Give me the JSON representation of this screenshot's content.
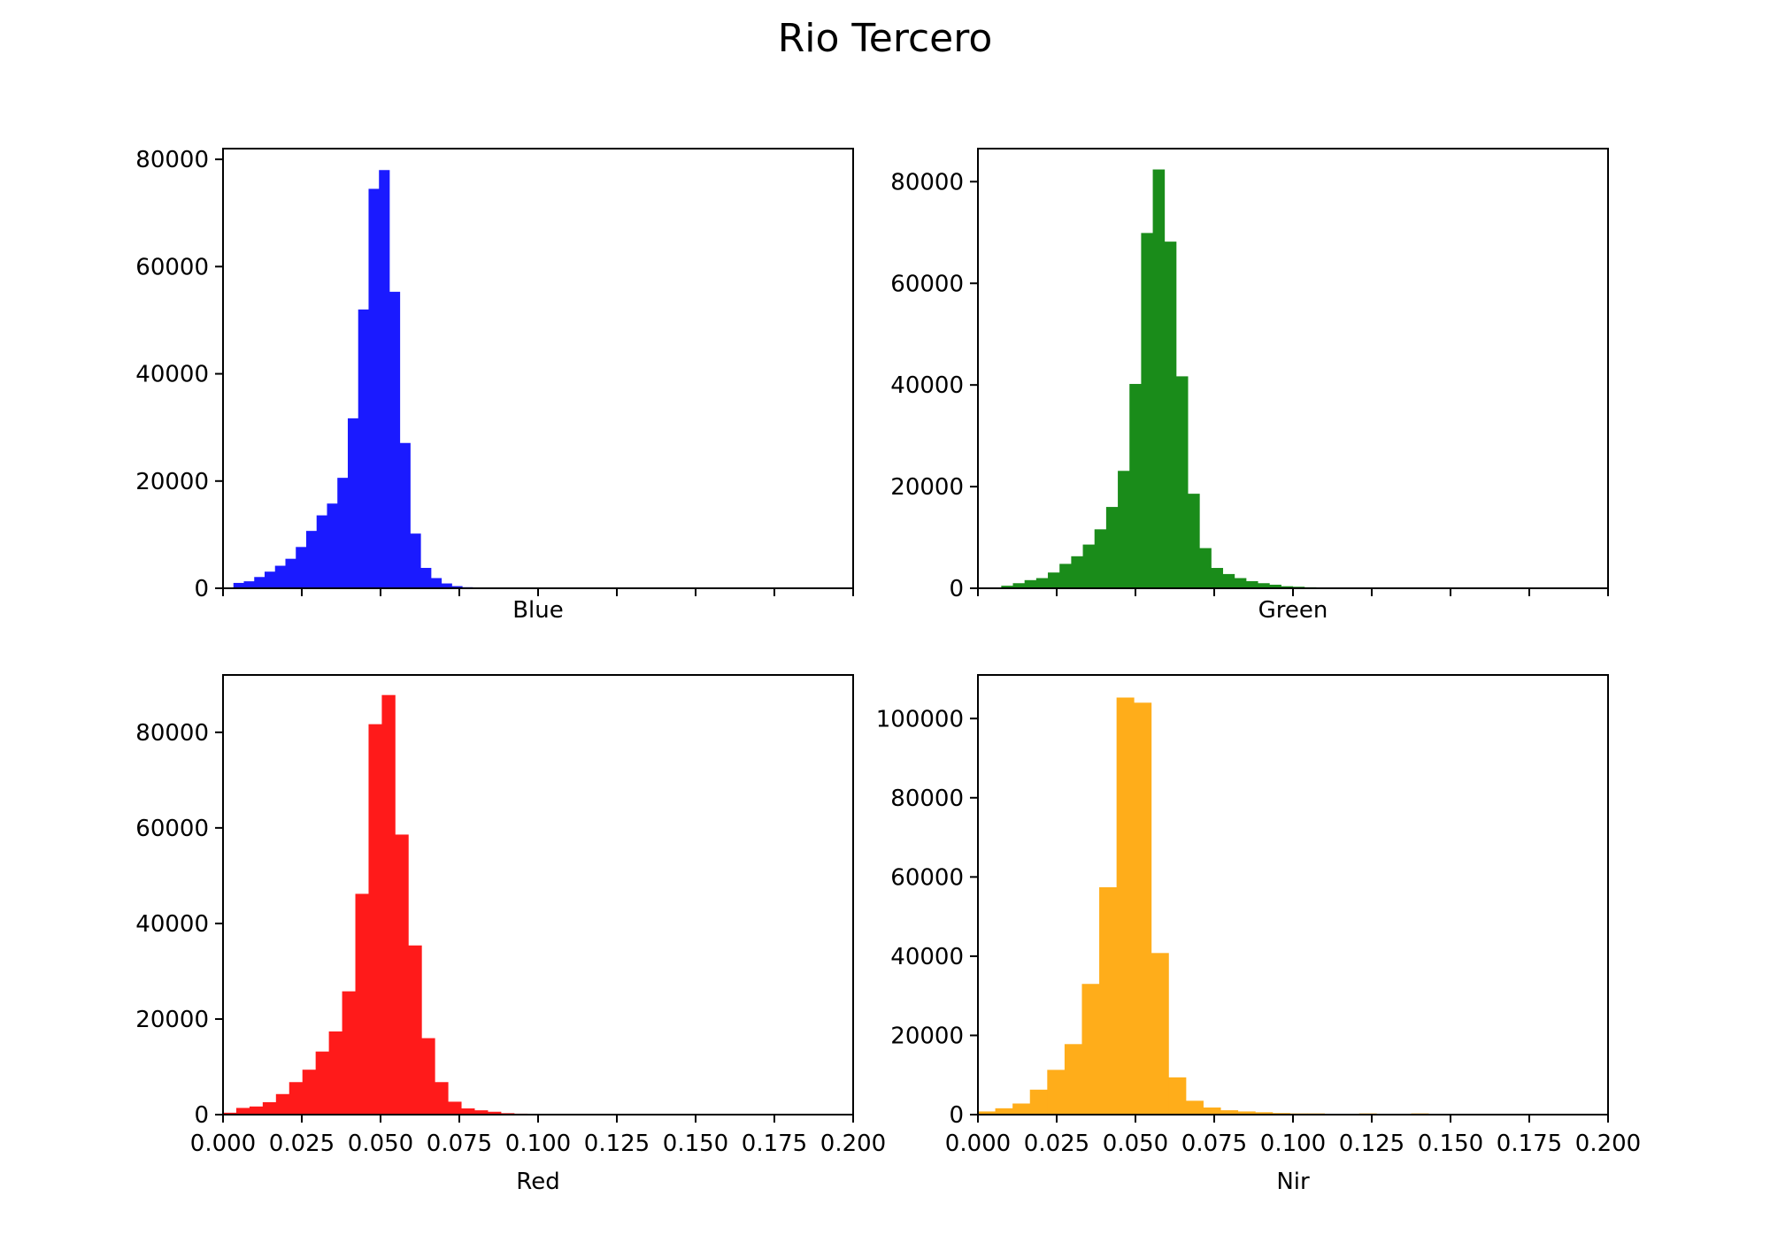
{
  "figure_title": "Rio Tercero",
  "chart_data": [
    {
      "type": "bar",
      "title": "",
      "xlabel": "Blue",
      "ylabel": "",
      "color": "#1a1aff",
      "xlim": [
        0,
        0.2
      ],
      "ylim": [
        0,
        82000
      ],
      "xticks": [
        "0.000",
        "0.025",
        "0.050",
        "0.075",
        "0.100",
        "0.125",
        "0.150",
        "0.175",
        "0.200"
      ],
      "show_xtick_labels": false,
      "yticks": [
        "0",
        "20000",
        "40000",
        "60000",
        "80000"
      ],
      "bin_width": 0.0033,
      "bin_start": 0.0033,
      "values": [
        1000,
        1300,
        2100,
        3100,
        4200,
        5500,
        7700,
        10700,
        13600,
        15800,
        20600,
        31700,
        52000,
        74500,
        78000,
        55300,
        27100,
        10200,
        3800,
        1900,
        900,
        400,
        200,
        100
      ]
    },
    {
      "type": "bar",
      "title": "",
      "xlabel": "Green",
      "ylabel": "",
      "color": "#1a8c1a",
      "xlim": [
        0,
        0.2
      ],
      "ylim": [
        0,
        86500
      ],
      "xticks": [
        "0.000",
        "0.025",
        "0.050",
        "0.075",
        "0.100",
        "0.125",
        "0.150",
        "0.175",
        "0.200"
      ],
      "show_xtick_labels": false,
      "yticks": [
        "0",
        "20000",
        "40000",
        "60000",
        "80000"
      ],
      "bin_width": 0.0037,
      "bin_start": 0.0074,
      "values": [
        500,
        1000,
        1600,
        2000,
        3100,
        4800,
        6300,
        8600,
        11600,
        16000,
        23100,
        40200,
        69900,
        82400,
        68200,
        41700,
        18600,
        7900,
        4000,
        2800,
        2000,
        1400,
        1000,
        700,
        400,
        300,
        200,
        100
      ]
    },
    {
      "type": "bar",
      "title": "",
      "xlabel": "Red",
      "ylabel": "",
      "color": "#ff1a1a",
      "xlim": [
        0,
        0.2
      ],
      "ylim": [
        0,
        92000
      ],
      "xticks": [
        "0.000",
        "0.025",
        "0.050",
        "0.075",
        "0.100",
        "0.125",
        "0.150",
        "0.175",
        "0.200"
      ],
      "show_xtick_labels": true,
      "yticks": [
        "0",
        "20000",
        "40000",
        "60000",
        "80000"
      ],
      "bin_width": 0.0042,
      "bin_start": 0.0,
      "values": [
        400,
        1400,
        1700,
        2600,
        4300,
        6800,
        9400,
        13200,
        17400,
        25800,
        46200,
        81700,
        87800,
        58600,
        35400,
        16000,
        6800,
        2700,
        1300,
        900,
        600,
        300,
        200,
        100
      ]
    },
    {
      "type": "bar",
      "title": "",
      "xlabel": "Nir",
      "ylabel": "",
      "color": "#ffad1a",
      "xlim": [
        0,
        0.2
      ],
      "ylim": [
        0,
        111000
      ],
      "xticks": [
        "0.000",
        "0.025",
        "0.050",
        "0.075",
        "0.100",
        "0.125",
        "0.150",
        "0.175",
        "0.200"
      ],
      "show_xtick_labels": true,
      "yticks": [
        "0",
        "20000",
        "40000",
        "60000",
        "80000",
        "100000"
      ],
      "bin_width": 0.0055,
      "bin_start": 0.0,
      "values": [
        800,
        1600,
        2800,
        6300,
        11300,
        17800,
        33000,
        57400,
        105300,
        104000,
        40800,
        9400,
        3500,
        1800,
        1100,
        800,
        600,
        400,
        300,
        300,
        200,
        100,
        300,
        100,
        100,
        300,
        100,
        100
      ]
    }
  ]
}
